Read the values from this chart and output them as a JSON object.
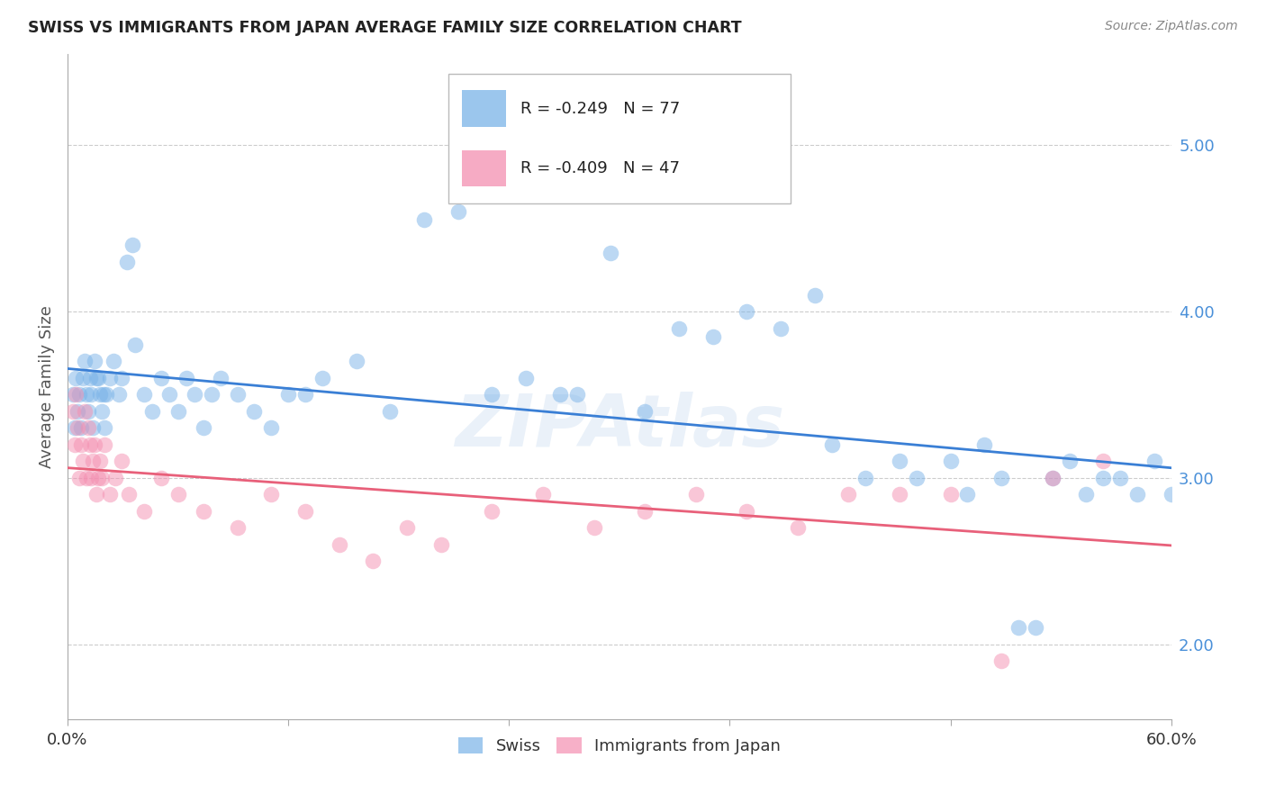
{
  "title": "SWISS VS IMMIGRANTS FROM JAPAN AVERAGE FAMILY SIZE CORRELATION CHART",
  "source": "Source: ZipAtlas.com",
  "ylabel": "Average Family Size",
  "ytick_color": "#4a90d9",
  "watermark": "ZIPAtlas",
  "swiss_color": "#7ab3e8",
  "japan_color": "#f48fb1",
  "swiss_line_color": "#3a7fd5",
  "japan_line_color": "#e8607a",
  "swiss_R": -0.249,
  "swiss_N": 77,
  "japan_R": -0.409,
  "japan_N": 47,
  "background_color": "#ffffff",
  "grid_color": "#cccccc",
  "swiss_x": [
    0.3,
    0.4,
    0.5,
    0.6,
    0.7,
    0.8,
    0.9,
    1.0,
    1.1,
    1.2,
    1.3,
    1.4,
    1.5,
    1.6,
    1.7,
    1.8,
    1.9,
    2.0,
    2.1,
    2.2,
    2.3,
    2.5,
    2.7,
    3.0,
    3.2,
    3.5,
    3.8,
    4.0,
    4.5,
    5.0,
    5.5,
    6.0,
    6.5,
    7.0,
    7.5,
    8.0,
    8.5,
    9.0,
    10.0,
    11.0,
    12.0,
    13.0,
    14.0,
    15.0,
    17.0,
    19.0,
    21.0,
    23.0,
    25.0,
    27.0,
    29.0,
    30.0,
    32.0,
    34.0,
    36.0,
    38.0,
    40.0,
    42.0,
    44.0,
    45.0,
    47.0,
    49.0,
    50.0,
    52.0,
    53.0,
    54.0,
    55.0,
    56.0,
    57.0,
    58.0,
    59.0,
    60.0,
    61.0,
    62.0,
    63.0,
    64.0,
    65.0
  ],
  "swiss_y": [
    3.5,
    3.3,
    3.6,
    3.4,
    3.5,
    3.3,
    3.6,
    3.7,
    3.5,
    3.4,
    3.6,
    3.5,
    3.3,
    3.7,
    3.6,
    3.6,
    3.5,
    3.4,
    3.5,
    3.3,
    3.5,
    3.6,
    3.7,
    3.5,
    3.6,
    4.3,
    4.4,
    3.8,
    3.5,
    3.4,
    3.6,
    3.5,
    3.4,
    3.6,
    3.5,
    3.3,
    3.5,
    3.6,
    3.5,
    3.4,
    3.3,
    3.5,
    3.5,
    3.6,
    3.7,
    3.4,
    4.55,
    4.6,
    3.5,
    3.6,
    3.5,
    3.5,
    4.35,
    3.4,
    3.9,
    3.85,
    4.0,
    3.9,
    4.1,
    3.2,
    3.0,
    3.1,
    3.0,
    3.1,
    2.9,
    3.2,
    3.0,
    2.1,
    2.1,
    3.0,
    3.1,
    2.9,
    3.0,
    3.0,
    2.9,
    3.1,
    2.9
  ],
  "japan_x": [
    0.3,
    0.4,
    0.5,
    0.6,
    0.7,
    0.8,
    0.9,
    1.0,
    1.1,
    1.2,
    1.3,
    1.4,
    1.5,
    1.6,
    1.7,
    1.8,
    1.9,
    2.0,
    2.2,
    2.5,
    2.8,
    3.2,
    3.6,
    4.5,
    5.5,
    6.5,
    8.0,
    10.0,
    12.0,
    14.0,
    16.0,
    18.0,
    20.0,
    22.0,
    25.0,
    28.0,
    31.0,
    34.0,
    37.0,
    40.0,
    43.0,
    46.0,
    49.0,
    52.0,
    55.0,
    58.0,
    61.0
  ],
  "japan_y": [
    3.4,
    3.2,
    3.5,
    3.3,
    3.0,
    3.2,
    3.1,
    3.4,
    3.0,
    3.3,
    3.2,
    3.0,
    3.1,
    3.2,
    2.9,
    3.0,
    3.1,
    3.0,
    3.2,
    2.9,
    3.0,
    3.1,
    2.9,
    2.8,
    3.0,
    2.9,
    2.8,
    2.7,
    2.9,
    2.8,
    2.6,
    2.5,
    2.7,
    2.6,
    2.8,
    2.9,
    2.7,
    2.8,
    2.9,
    2.8,
    2.7,
    2.9,
    2.9,
    2.9,
    1.9,
    3.0,
    3.1
  ]
}
